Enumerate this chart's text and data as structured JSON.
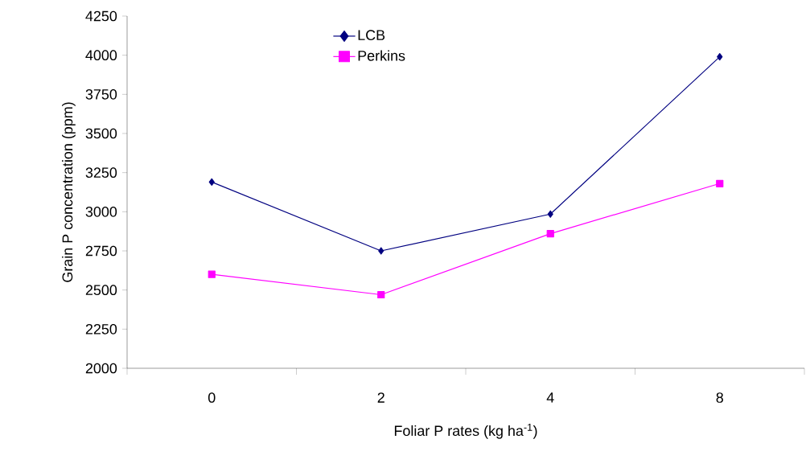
{
  "chart_data": {
    "type": "line",
    "xlabel": "Foliar P rates (kg ha$^{-1}$)",
    "ylabel": "Grain P concentration (ppm)",
    "categories": [
      "0",
      "2",
      "4",
      "8"
    ],
    "series": [
      {
        "name": "LCB",
        "color": "#000080",
        "marker": "diamond",
        "values": [
          3190,
          2750,
          2985,
          3990
        ]
      },
      {
        "name": "Perkins",
        "color": "#ff00ff",
        "marker": "square",
        "values": [
          2600,
          2470,
          2860,
          3180
        ]
      }
    ],
    "ylim": [
      2000,
      4250
    ],
    "yticks": [
      2000,
      2250,
      2500,
      2750,
      3000,
      3250,
      3500,
      3750,
      4000,
      4250
    ],
    "grid": false,
    "legend": "top",
    "line_style": "solid"
  }
}
